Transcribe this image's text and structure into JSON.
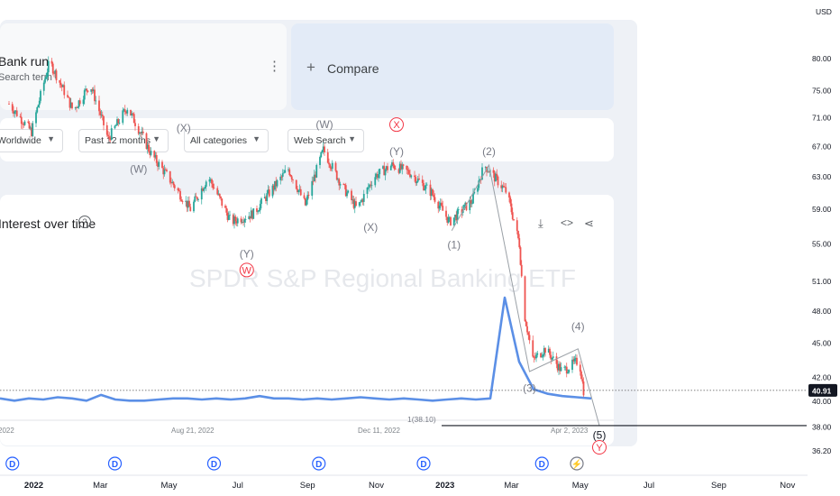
{
  "gtrends": {
    "topic_title": "Bank run",
    "topic_sub": "Search term",
    "compare_label": "Compare",
    "filters": [
      "Worldwide",
      "Past 12 months",
      "All categories",
      "Web Search"
    ],
    "interest_title": "Interest over time",
    "dates": [
      "2022",
      "Aug 21, 2022",
      "Dec 11, 2022",
      "Apr 2, 2023"
    ]
  },
  "watermark": "SPDR S&P Regional Banking ETF",
  "colors": {
    "up": "#26a69a",
    "down": "#ef5350",
    "wave": "#9aa0a6",
    "trends_line": "#5b8fe6",
    "event": "#2962ff",
    "ref_line": "#131722"
  },
  "chart_data": {
    "type": "candlestick",
    "currency": "USD",
    "y_scale": "log",
    "ylim": [
      35.5,
      82.5
    ],
    "x_range": [
      "2021-12-02",
      "2023-11-14"
    ],
    "y_ticks": [
      80.0,
      75.0,
      71.0,
      67.0,
      63.0,
      59.0,
      55.0,
      51.0,
      48.0,
      45.0,
      42.0,
      40.0,
      38.0,
      36.2
    ],
    "x_ticks": [
      "2022",
      "Mar",
      "May",
      "Jul",
      "Sep",
      "Nov",
      "2023",
      "Mar",
      "May",
      "Jul",
      "Sep",
      "Nov"
    ],
    "last_price": "40.91",
    "reference_level": 38.1,
    "reference_label": "1(38.10)",
    "price_path": [
      [
        "2021-12-10",
        73
      ],
      [
        "2021-12-30",
        69
      ],
      [
        "2022-01-15",
        79.5
      ],
      [
        "2022-02-05",
        72
      ],
      [
        "2022-02-20",
        76
      ],
      [
        "2022-03-08",
        68
      ],
      [
        "2022-03-25",
        72.5
      ],
      [
        "2022-04-15",
        66
      ],
      [
        "2022-05-05",
        62
      ],
      [
        "2022-05-20",
        59
      ],
      [
        "2022-06-05",
        63
      ],
      [
        "2022-06-25",
        57.5
      ],
      [
        "2022-07-15",
        58.5
      ],
      [
        "2022-08-15",
        64
      ],
      [
        "2022-08-30",
        59.5
      ],
      [
        "2022-09-15",
        66.5
      ],
      [
        "2022-10-01",
        62
      ],
      [
        "2022-10-15",
        59
      ],
      [
        "2022-10-30",
        63
      ],
      [
        "2022-11-15",
        64.5
      ],
      [
        "2022-12-01",
        63.5
      ],
      [
        "2022-12-20",
        61
      ],
      [
        "2023-01-05",
        57.5
      ],
      [
        "2023-01-25",
        60
      ],
      [
        "2023-02-05",
        64.5
      ],
      [
        "2023-02-25",
        61
      ],
      [
        "2023-03-08",
        55
      ],
      [
        "2023-03-12",
        48
      ],
      [
        "2023-03-20",
        43.5
      ],
      [
        "2023-03-31",
        44.5
      ],
      [
        "2023-04-15",
        42.5
      ],
      [
        "2023-04-30",
        43.5
      ],
      [
        "2023-05-04",
        40.91
      ]
    ],
    "elliott_labels": [
      {
        "text": "(X)",
        "date": "2022-05-14",
        "price": 69,
        "color": "grey"
      },
      {
        "text": "(W)",
        "date": "2022-04-04",
        "price": 63.5,
        "color": "grey"
      },
      {
        "text": "(Y)",
        "date": "2022-07-09",
        "price": 53.5,
        "color": "grey"
      },
      {
        "text": "W",
        "date": "2022-07-09",
        "price": 51.8,
        "color": "red",
        "circled": true
      },
      {
        "text": "(W)",
        "date": "2022-09-16",
        "price": 69.5,
        "color": "grey"
      },
      {
        "text": "X",
        "date": "2022-11-19",
        "price": 69.5,
        "color": "red",
        "circled": true
      },
      {
        "text": "(Y)",
        "date": "2022-11-19",
        "price": 65.8,
        "color": "grey"
      },
      {
        "text": "(X)",
        "date": "2022-10-27",
        "price": 56.5,
        "color": "grey"
      },
      {
        "text": "(1)",
        "date": "2023-01-09",
        "price": 54.5,
        "color": "grey"
      },
      {
        "text": "(2)",
        "date": "2023-02-09",
        "price": 65.8,
        "color": "grey"
      },
      {
        "text": "(3)",
        "date": "2023-03-17",
        "price": 40.8,
        "color": "grey"
      },
      {
        "text": "(4)",
        "date": "2023-04-29",
        "price": 46.2,
        "color": "grey"
      },
      {
        "text": "(5)",
        "date": "2023-05-18",
        "price": 37.1,
        "color": "dark"
      },
      {
        "text": "Y",
        "date": "2023-05-18",
        "price": 36.2,
        "color": "red",
        "circled": true
      }
    ],
    "wave_path": [
      [
        "2023-01-07",
        56.5
      ],
      [
        "2023-02-09",
        64.5
      ],
      [
        "2023-03-17",
        42.5
      ],
      [
        "2023-04-29",
        44.5
      ],
      [
        "2023-05-18",
        38.1
      ]
    ],
    "event_markers": [
      {
        "date": "2021-12-13",
        "text": "D"
      },
      {
        "date": "2022-03-14",
        "text": "D"
      },
      {
        "date": "2022-06-10",
        "text": "D"
      },
      {
        "date": "2022-09-11",
        "text": "D"
      },
      {
        "date": "2022-12-13",
        "text": "D"
      },
      {
        "date": "2023-03-28",
        "text": "D"
      },
      {
        "date": "2023-04-28",
        "text": "⚡"
      }
    ],
    "trends_interest": [
      12,
      10,
      12,
      11,
      13,
      12,
      10,
      15,
      11,
      10,
      10,
      11,
      12,
      12,
      11,
      12,
      11,
      12,
      14,
      12,
      12,
      11,
      12,
      11,
      12,
      13,
      12,
      11,
      12,
      11,
      10,
      11,
      12,
      11,
      12,
      100,
      44,
      20,
      16,
      14,
      13,
      12
    ]
  }
}
